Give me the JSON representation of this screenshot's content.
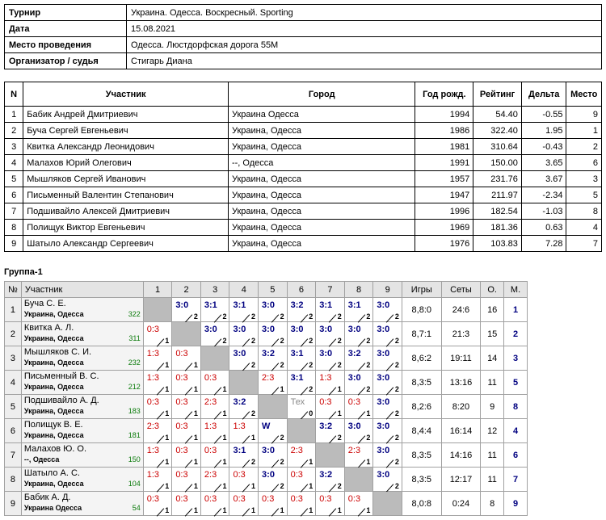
{
  "info": [
    {
      "label": "Турнир",
      "value": "Украина. Одесса. Воскресный. Sporting"
    },
    {
      "label": "Дата",
      "value": "15.08.2021"
    },
    {
      "label": "Место проведения",
      "value": "Одесса. Люстдорфская дорога 55М"
    },
    {
      "label": "Организатор / судья",
      "value": "Стигарь Диана"
    }
  ],
  "participants": {
    "headers": [
      "N",
      "Участник",
      "Город",
      "Год рожд.",
      "Рейтинг",
      "Дельта",
      "Место"
    ],
    "rows": [
      [
        "1",
        "Бабик Андрей Дмитриевич",
        "Украина Одесса",
        "1994",
        "54.40",
        "-0.55",
        "9"
      ],
      [
        "2",
        "Буча Сергей Евгеньевич",
        "Украина, Одесса",
        "1986",
        "322.40",
        "1.95",
        "1"
      ],
      [
        "3",
        "Квитка Александр Леонидович",
        "Украина, Одесса",
        "1981",
        "310.64",
        "-0.43",
        "2"
      ],
      [
        "4",
        "Малахов Юрий Олегович",
        "--, Одесса",
        "1991",
        "150.00",
        "3.65",
        "6"
      ],
      [
        "5",
        "Мышляков Сергей Иванович",
        "Украина, Одесса",
        "1957",
        "231.76",
        "3.67",
        "3"
      ],
      [
        "6",
        "Письменный Валентин Степанович",
        "Украина, Одесса",
        "1947",
        "211.97",
        "-2.34",
        "5"
      ],
      [
        "7",
        "Подшивайло Алексей Дмитриевич",
        "Украина, Одесса",
        "1996",
        "182.54",
        "-1.03",
        "8"
      ],
      [
        "8",
        "Полищук Виктор Евгеньевич",
        "Украина, Одесса",
        "1969",
        "181.36",
        "0.63",
        "4"
      ],
      [
        "9",
        "Шатыло Александр Сергеевич",
        "Украина, Одесса",
        "1976",
        "103.83",
        "7.28",
        "7"
      ]
    ]
  },
  "group": {
    "title": "Группа-1",
    "headers": {
      "num": "№",
      "player": "Участник",
      "cols": [
        "1",
        "2",
        "3",
        "4",
        "5",
        "6",
        "7",
        "8",
        "9"
      ],
      "games": "Игры",
      "sets": "Сеты",
      "points": "О.",
      "place": "М."
    },
    "rows": [
      {
        "n": "1",
        "name": "Буча С. Е.",
        "city": "Украина, Одесса",
        "rating": "322",
        "cells": [
          null,
          [
            "3:0",
            "2"
          ],
          [
            "3:1",
            "2"
          ],
          [
            "3:1",
            "2"
          ],
          [
            "3:0",
            "2"
          ],
          [
            "3:2",
            "2"
          ],
          [
            "3:1",
            "2"
          ],
          [
            "3:1",
            "2"
          ],
          [
            "3:0",
            "2"
          ]
        ],
        "games": "8,8:0",
        "sets": "24:6",
        "points": "16",
        "place": "1"
      },
      {
        "n": "2",
        "name": "Квитка А. Л.",
        "city": "Украина, Одесса",
        "rating": "311",
        "cells": [
          [
            "0:3",
            "1"
          ],
          null,
          [
            "3:0",
            "2"
          ],
          [
            "3:0",
            "2"
          ],
          [
            "3:0",
            "2"
          ],
          [
            "3:0",
            "2"
          ],
          [
            "3:0",
            "2"
          ],
          [
            "3:0",
            "2"
          ],
          [
            "3:0",
            "2"
          ]
        ],
        "games": "8,7:1",
        "sets": "21:3",
        "points": "15",
        "place": "2"
      },
      {
        "n": "3",
        "name": "Мышляков С. И.",
        "city": "Украина, Одесса",
        "rating": "232",
        "cells": [
          [
            "1:3",
            "1"
          ],
          [
            "0:3",
            "1"
          ],
          null,
          [
            "3:0",
            "2"
          ],
          [
            "3:2",
            "2"
          ],
          [
            "3:1",
            "2"
          ],
          [
            "3:0",
            "2"
          ],
          [
            "3:2",
            "2"
          ],
          [
            "3:0",
            "2"
          ]
        ],
        "games": "8,6:2",
        "sets": "19:11",
        "points": "14",
        "place": "3"
      },
      {
        "n": "4",
        "name": "Письменный В. С.",
        "city": "Украина, Одесса",
        "rating": "212",
        "cells": [
          [
            "1:3",
            "1"
          ],
          [
            "0:3",
            "1"
          ],
          [
            "0:3",
            "1"
          ],
          null,
          [
            "2:3",
            "1"
          ],
          [
            "3:1",
            "2"
          ],
          [
            "1:3",
            "1"
          ],
          [
            "3:0",
            "2"
          ],
          [
            "3:0",
            "2"
          ]
        ],
        "games": "8,3:5",
        "sets": "13:16",
        "points": "11",
        "place": "5"
      },
      {
        "n": "5",
        "name": "Подшивайло А. Д.",
        "city": "Украина, Одесса",
        "rating": "183",
        "cells": [
          [
            "0:3",
            "1"
          ],
          [
            "0:3",
            "1"
          ],
          [
            "2:3",
            "1"
          ],
          [
            "3:2",
            "2"
          ],
          null,
          [
            "Тех",
            "0"
          ],
          [
            "0:3",
            "1"
          ],
          [
            "0:3",
            "1"
          ],
          [
            "3:0",
            "2"
          ]
        ],
        "games": "8,2:6",
        "sets": "8:20",
        "points": "9",
        "place": "8"
      },
      {
        "n": "6",
        "name": "Полищук В. Е.",
        "city": "Украина, Одесса",
        "rating": "181",
        "cells": [
          [
            "2:3",
            "1"
          ],
          [
            "0:3",
            "1"
          ],
          [
            "1:3",
            "1"
          ],
          [
            "1:3",
            "1"
          ],
          [
            "W",
            "2"
          ],
          null,
          [
            "3:2",
            "2"
          ],
          [
            "3:0",
            "2"
          ],
          [
            "3:0",
            "2"
          ]
        ],
        "games": "8,4:4",
        "sets": "16:14",
        "points": "12",
        "place": "4"
      },
      {
        "n": "7",
        "name": "Малахов Ю. О.",
        "city": "--, Одесса",
        "rating": "150",
        "cells": [
          [
            "1:3",
            "1"
          ],
          [
            "0:3",
            "1"
          ],
          [
            "0:3",
            "1"
          ],
          [
            "3:1",
            "2"
          ],
          [
            "3:0",
            "2"
          ],
          [
            "2:3",
            "1"
          ],
          null,
          [
            "2:3",
            "1"
          ],
          [
            "3:0",
            "2"
          ]
        ],
        "games": "8,3:5",
        "sets": "14:16",
        "points": "11",
        "place": "6"
      },
      {
        "n": "8",
        "name": "Шатыло А. С.",
        "city": "Украина, Одесса",
        "rating": "104",
        "cells": [
          [
            "1:3",
            "1"
          ],
          [
            "0:3",
            "1"
          ],
          [
            "2:3",
            "1"
          ],
          [
            "0:3",
            "1"
          ],
          [
            "3:0",
            "2"
          ],
          [
            "0:3",
            "1"
          ],
          [
            "3:2",
            "2"
          ],
          null,
          [
            "3:0",
            "2"
          ]
        ],
        "games": "8,3:5",
        "sets": "12:17",
        "points": "11",
        "place": "7"
      },
      {
        "n": "9",
        "name": "Бабик А. Д.",
        "city": "Украина Одесса",
        "rating": "54",
        "cells": [
          [
            "0:3",
            "1"
          ],
          [
            "0:3",
            "1"
          ],
          [
            "0:3",
            "1"
          ],
          [
            "0:3",
            "1"
          ],
          [
            "0:3",
            "1"
          ],
          [
            "0:3",
            "1"
          ],
          [
            "0:3",
            "1"
          ],
          [
            "0:3",
            "1"
          ],
          null
        ],
        "games": "8,0:8",
        "sets": "0:24",
        "points": "8",
        "place": "9"
      }
    ]
  }
}
